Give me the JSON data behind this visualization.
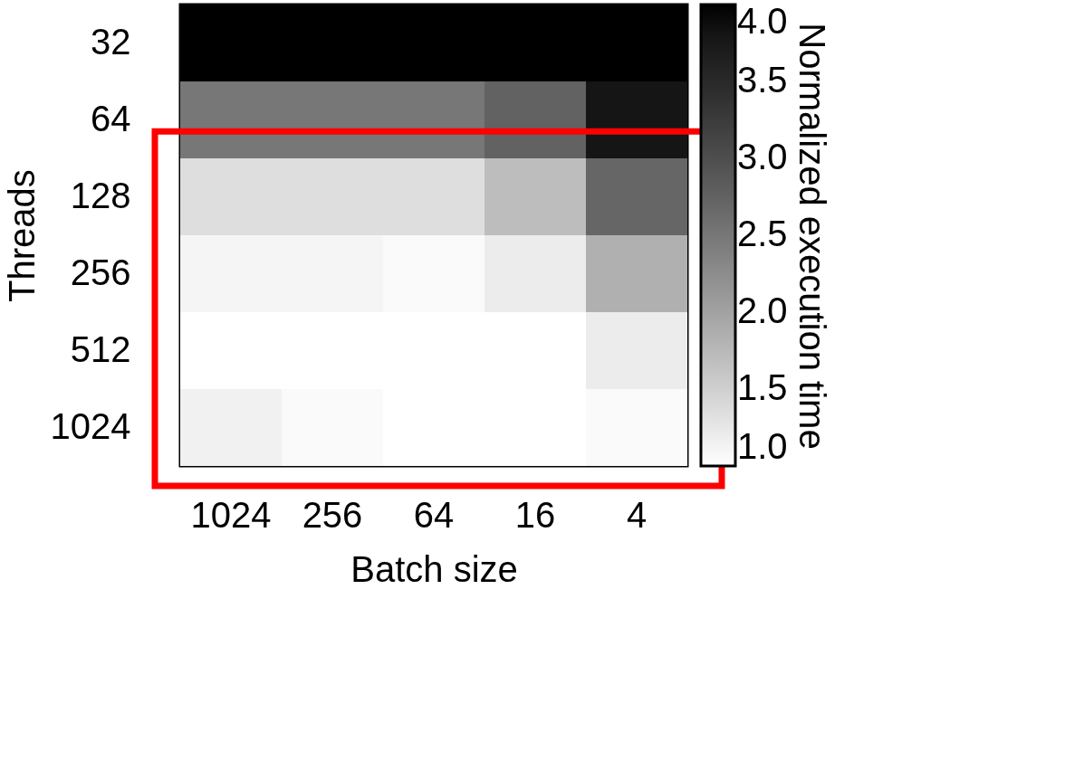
{
  "chart_data": {
    "type": "heatmap",
    "xlabel": "Batch size",
    "ylabel": "Threads",
    "clabel": "Normalized execution time",
    "categories": [
      "1024",
      "256",
      "64",
      "16",
      "4"
    ],
    "y_categories": [
      "32",
      "64",
      "128",
      "256",
      "512",
      "1024"
    ],
    "cells": [
      [
        4.0,
        4.0,
        4.0,
        4.0,
        4.0
      ],
      [
        2.5,
        2.5,
        2.5,
        2.75,
        3.8
      ],
      [
        1.35,
        1.35,
        1.35,
        1.7,
        2.7
      ],
      [
        1.1,
        1.1,
        1.05,
        1.2,
        1.85
      ],
      [
        1.0,
        1.0,
        1.0,
        1.0,
        1.2
      ],
      [
        1.15,
        1.05,
        1.0,
        1.0,
        1.05
      ]
    ],
    "clim": [
      1.0,
      4.0
    ],
    "cticks": [
      {
        "value": 1.0,
        "label": "1.0"
      },
      {
        "value": 1.5,
        "label": "1.5"
      },
      {
        "value": 2.0,
        "label": "2.0"
      },
      {
        "value": 2.5,
        "label": "2.5"
      },
      {
        "value": 3.0,
        "label": "3.0"
      },
      {
        "value": 3.5,
        "label": "3.5"
      },
      {
        "value": 4.0,
        "label": "4.0"
      }
    ]
  }
}
